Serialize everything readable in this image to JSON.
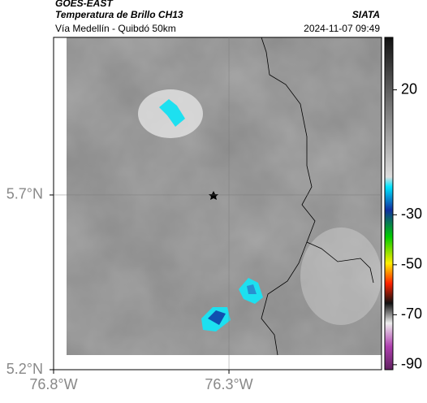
{
  "header": {
    "satellite": "GOES-EAST",
    "product": "Temperatura de Brillo CH13",
    "source": "SIATA",
    "route": "Vía Medellín - Quibdó 50km",
    "datetime": "2024-11-07 09:49"
  },
  "map": {
    "xlim": [
      -76.8,
      -75.865
    ],
    "ylim": [
      5.2,
      6.151
    ],
    "xticks": [
      {
        "value": -76.8,
        "label": "76.8°W"
      },
      {
        "value": -76.3,
        "label": "76.3°W"
      }
    ],
    "yticks": [
      {
        "value": 5.7,
        "label": "5.7°N"
      },
      {
        "value": 5.2,
        "label": "5.2°N"
      }
    ],
    "grid": true
  },
  "colorbar": {
    "clim": [
      -92,
      41
    ],
    "ticks": [
      20,
      -30,
      -50,
      -70,
      -90
    ]
  }
}
